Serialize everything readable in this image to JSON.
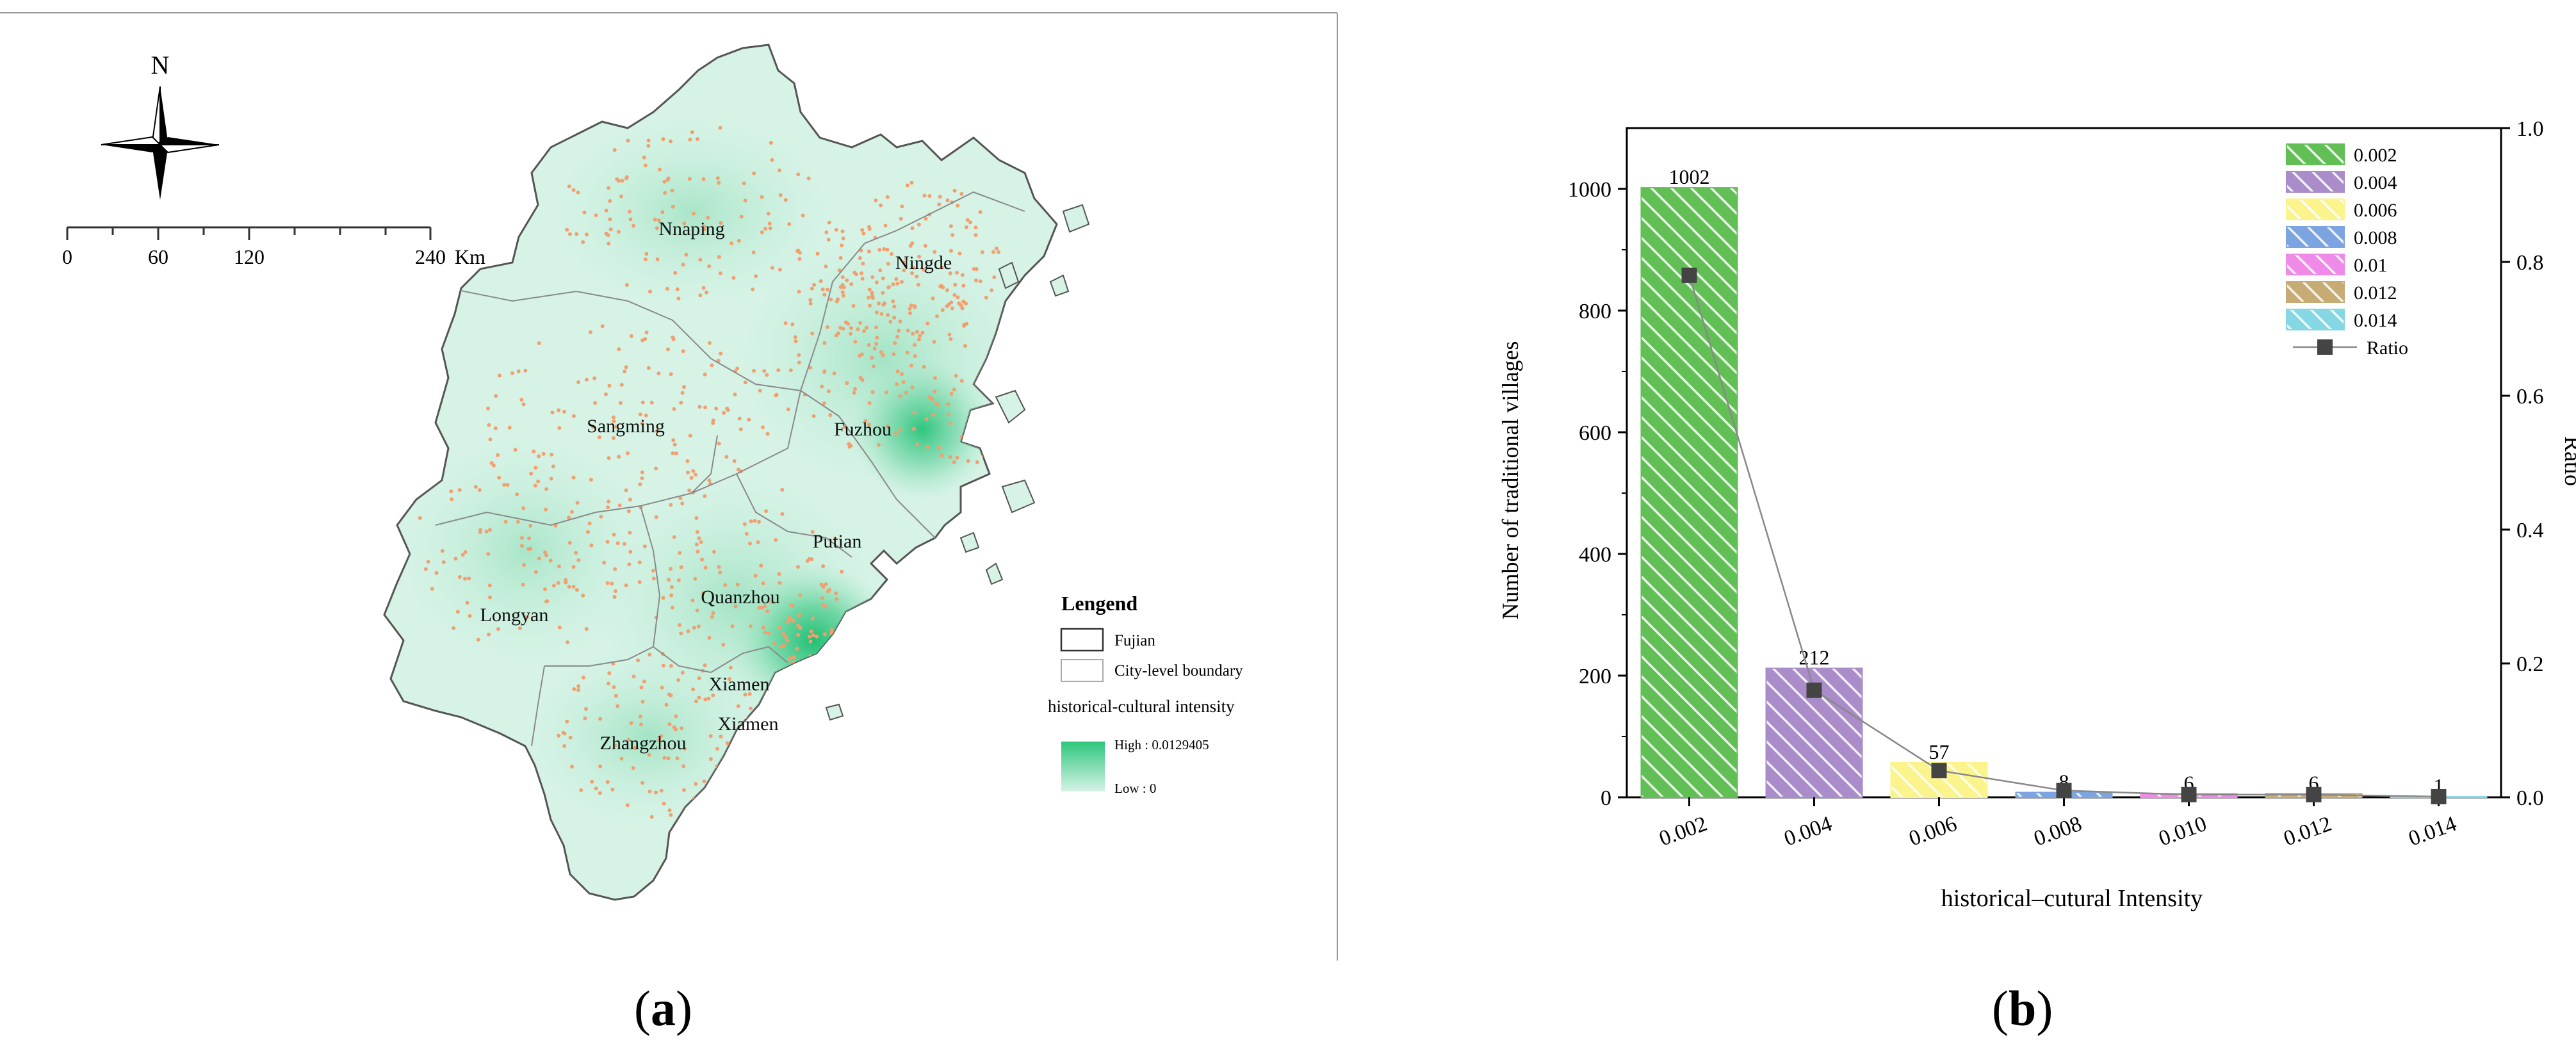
{
  "map": {
    "north_label": "N",
    "scale_ticks": [
      "0",
      "60",
      "120",
      "240"
    ],
    "scale_unit": "Km",
    "cities": [
      {
        "name": "Nnaping"
      },
      {
        "name": "Ningde"
      },
      {
        "name": "Sangming"
      },
      {
        "name": "Fuzhou"
      },
      {
        "name": "Putian"
      },
      {
        "name": "Quanzhou"
      },
      {
        "name": "Longyan"
      },
      {
        "name": "Xiamen"
      },
      {
        "name": "Xiamen"
      },
      {
        "name": "Zhangzhou"
      }
    ],
    "legend": {
      "title": "Lengend",
      "items": [
        "Fujian",
        "City-level boundary"
      ],
      "intensity_title": "historical-cultural intensity",
      "high_label": "High : 0.0129405",
      "low_label": "Low : 0"
    },
    "colors": {
      "low": "#d6f3e6",
      "mid": "#a6e6c7",
      "high": "#2ec67d",
      "points": "#f0a070"
    }
  },
  "chart_data": {
    "type": "bar",
    "categories": [
      "0.002",
      "0.004",
      "0.006",
      "0.008",
      "0.010",
      "0.012",
      "0.014"
    ],
    "values": [
      1002,
      212,
      57,
      8,
      6,
      6,
      1
    ],
    "ratio": [
      0.78,
      0.16,
      0.04,
      0.01,
      0.004,
      0.004,
      0.001
    ],
    "xlabel": "historical–cutural Intensity",
    "ylabel": "Number of traditional villages",
    "y2label": "Ratio",
    "ylim": [
      0,
      1100
    ],
    "y_ticks": [
      "0",
      "200",
      "400",
      "600",
      "800",
      "1000"
    ],
    "y2lim": [
      0,
      1.0
    ],
    "y2_ticks": [
      "0.0",
      "0.2",
      "0.4",
      "0.6",
      "0.8",
      "1.0"
    ],
    "legend": [
      "0.002",
      "0.004",
      "0.006",
      "0.008",
      "0.01",
      "0.012",
      "0.014",
      "Ratio"
    ],
    "legend_placement": "top-right",
    "colors": [
      "#62bf56",
      "#a98cc9",
      "#fbf48d",
      "#7ba4e0",
      "#f08ae8",
      "#c7ab75",
      "#84d7e3"
    ]
  },
  "captions": {
    "a": {
      "open": "(",
      "letter": "a",
      "close": ")"
    },
    "b": {
      "open": "(",
      "letter": "b",
      "close": ")"
    }
  }
}
